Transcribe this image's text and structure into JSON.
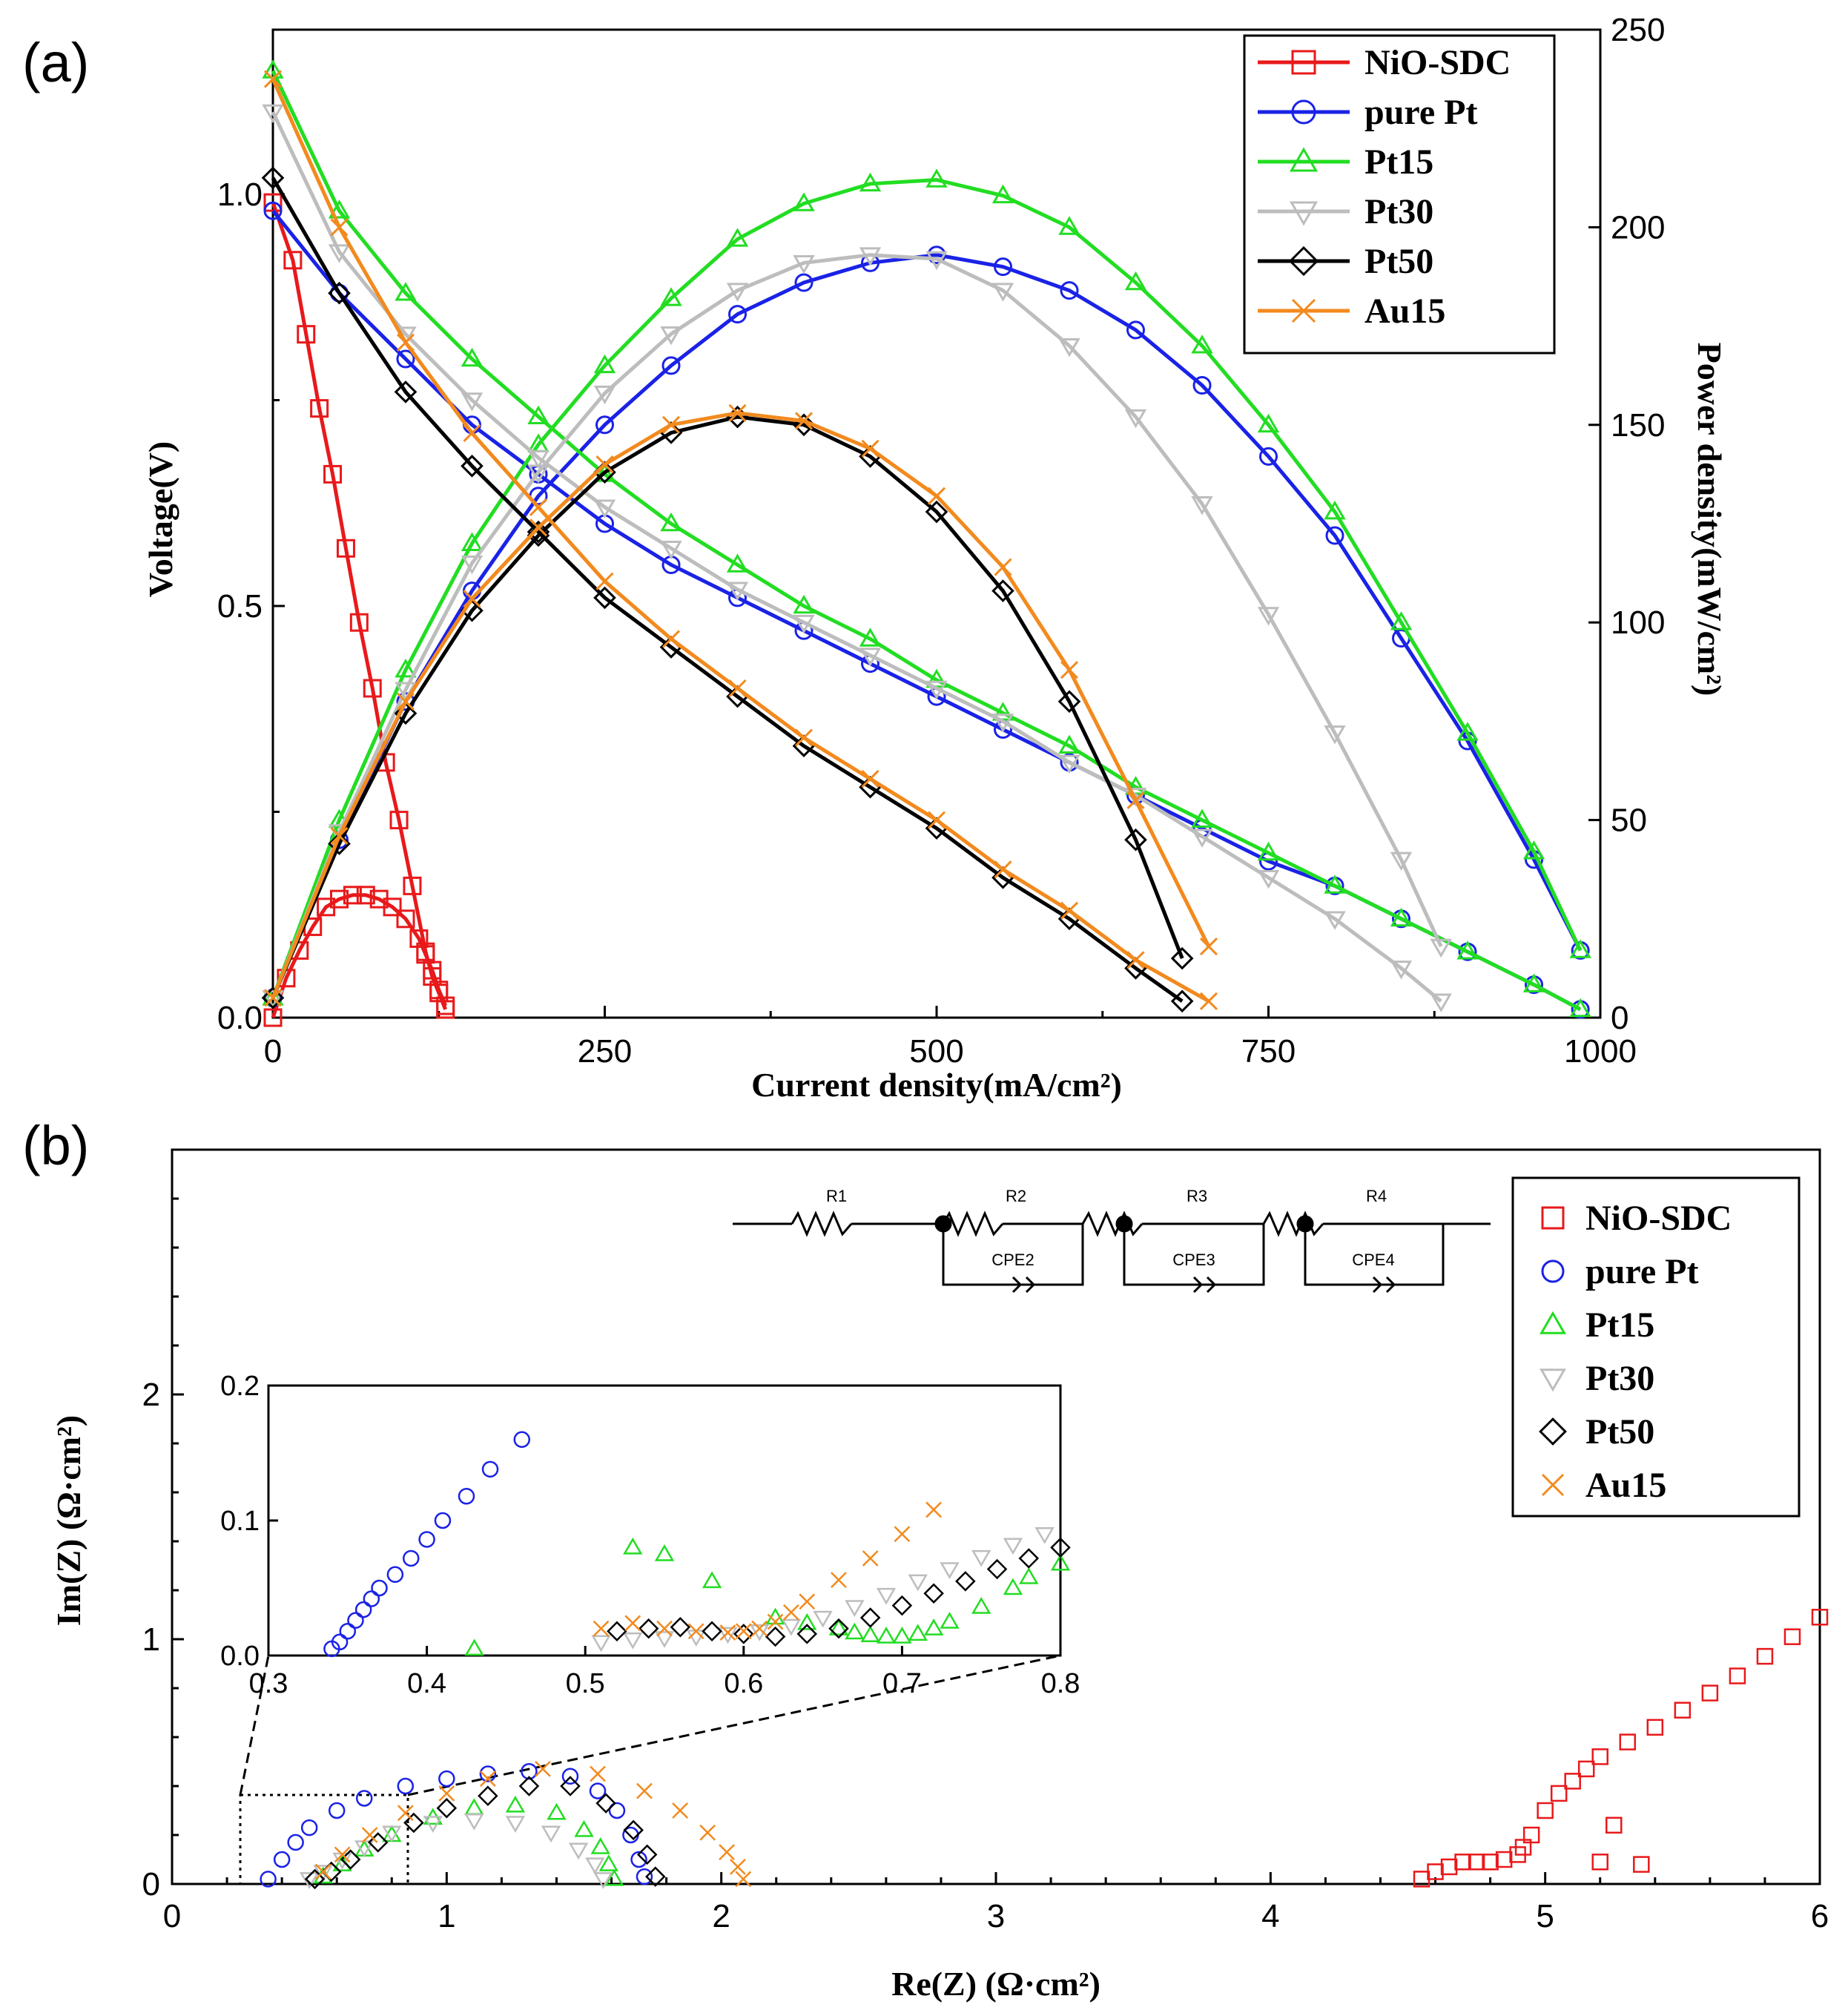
{
  "panel_a_label": "(a)",
  "panel_b_label": "(b)",
  "colors": {
    "NiO-SDC": "#e8191b",
    "pure Pt": "#1a22e6",
    "Pt15": "#22dd22",
    "Pt30": "#bdbdbd",
    "Pt50": "#000000",
    "Au15": "#f28a1e"
  },
  "chart_data": [
    {
      "id": "a",
      "type": "line",
      "title": "",
      "xlabel": "Current density(mA/cm²)",
      "ylabel": "Voltage(V)",
      "y2label": "Power density(mW/cm²)",
      "xlim": [
        0,
        1000
      ],
      "ylim": [
        0,
        1.2
      ],
      "y2lim": [
        0,
        250
      ],
      "xticks": [
        0,
        250,
        500,
        750,
        1000
      ],
      "yticks": [
        0.0,
        0.5,
        1.0
      ],
      "y2ticks": [
        0,
        50,
        100,
        150,
        200,
        250
      ],
      "legend": [
        "NiO-SDC",
        "pure Pt",
        "Pt15",
        "Pt30",
        "Pt50",
        "Au15"
      ],
      "series": [
        {
          "name": "NiO-SDC",
          "marker": "square",
          "voltage": {
            "x": [
              0,
              15,
              25,
              35,
              45,
              55,
              65,
              75,
              85,
              95,
              105,
              115,
              120,
              125,
              130
            ],
            "y": [
              0.99,
              0.92,
              0.83,
              0.74,
              0.66,
              0.57,
              0.48,
              0.4,
              0.31,
              0.24,
              0.16,
              0.08,
              0.05,
              0.03,
              0.01
            ]
          },
          "power": {
            "x": [
              0,
              10,
              20,
              30,
              40,
              50,
              60,
              70,
              80,
              90,
              100,
              110,
              115,
              120,
              125,
              130
            ],
            "y": [
              0,
              10,
              17,
              23,
              28,
              30,
              31,
              31,
              30,
              28,
              25,
              20,
              16,
              12,
              7,
              3
            ]
          }
        },
        {
          "name": "pure Pt",
          "marker": "circle",
          "voltage": {
            "x": [
              0,
              50,
              100,
              150,
              200,
              250,
              300,
              350,
              400,
              450,
              500,
              550,
              600,
              650,
              700,
              750,
              800,
              850,
              900,
              950,
              985
            ],
            "y": [
              0.98,
              0.88,
              0.8,
              0.72,
              0.66,
              0.6,
              0.55,
              0.51,
              0.47,
              0.43,
              0.39,
              0.35,
              0.31,
              0.27,
              0.23,
              0.19,
              0.16,
              0.12,
              0.08,
              0.04,
              0.01
            ]
          },
          "power": {
            "x": [
              0,
              50,
              100,
              150,
              200,
              250,
              300,
              350,
              400,
              450,
              500,
              550,
              600,
              650,
              700,
              750,
              800,
              850,
              900,
              950,
              985
            ],
            "y": [
              5,
              45,
              80,
              108,
              132,
              150,
              165,
              178,
              186,
              191,
              193,
              190,
              184,
              174,
              160,
              142,
              122,
              96,
              70,
              40,
              17
            ]
          }
        },
        {
          "name": "Pt15",
          "marker": "triangle-up",
          "voltage": {
            "x": [
              0,
              50,
              100,
              150,
              200,
              250,
              300,
              350,
              400,
              450,
              500,
              550,
              600,
              650,
              700,
              750,
              800,
              850,
              900,
              950,
              985
            ],
            "y": [
              1.15,
              0.98,
              0.88,
              0.8,
              0.73,
              0.66,
              0.6,
              0.55,
              0.5,
              0.46,
              0.41,
              0.37,
              0.33,
              0.28,
              0.24,
              0.2,
              0.16,
              0.12,
              0.08,
              0.04,
              0.01
            ]
          },
          "power": {
            "x": [
              0,
              50,
              100,
              150,
              200,
              250,
              300,
              350,
              400,
              450,
              500,
              550,
              600,
              650,
              700,
              750,
              800,
              850,
              900,
              950,
              985
            ],
            "y": [
              5,
              50,
              88,
              120,
              145,
              165,
              182,
              197,
              206,
              211,
              212,
              208,
              200,
              186,
              170,
              150,
              128,
              100,
              72,
              42,
              17
            ]
          }
        },
        {
          "name": "Pt30",
          "marker": "triangle-down",
          "voltage": {
            "x": [
              0,
              50,
              100,
              150,
              200,
              250,
              300,
              350,
              400,
              450,
              500,
              550,
              600,
              650,
              700,
              750,
              800,
              850,
              880
            ],
            "y": [
              1.1,
              0.93,
              0.83,
              0.75,
              0.68,
              0.62,
              0.57,
              0.52,
              0.48,
              0.44,
              0.4,
              0.36,
              0.31,
              0.27,
              0.22,
              0.17,
              0.12,
              0.06,
              0.02
            ]
          },
          "power": {
            "x": [
              0,
              50,
              100,
              150,
              200,
              250,
              300,
              350,
              400,
              450,
              500,
              550,
              600,
              650,
              700,
              750,
              800,
              850,
              880
            ],
            "y": [
              5,
              47,
              83,
              115,
              138,
              158,
              173,
              184,
              191,
              193,
              192,
              184,
              170,
              152,
              130,
              102,
              72,
              40,
              18
            ]
          }
        },
        {
          "name": "Pt50",
          "marker": "diamond",
          "voltage": {
            "x": [
              0,
              50,
              100,
              150,
              200,
              250,
              300,
              350,
              400,
              450,
              500,
              550,
              600,
              650,
              685
            ],
            "y": [
              1.02,
              0.88,
              0.76,
              0.67,
              0.59,
              0.51,
              0.45,
              0.39,
              0.33,
              0.28,
              0.23,
              0.17,
              0.12,
              0.06,
              0.02
            ]
          },
          "power": {
            "x": [
              0,
              50,
              100,
              150,
              200,
              250,
              300,
              350,
              400,
              450,
              500,
              550,
              600,
              650,
              685
            ],
            "y": [
              5,
              44,
              77,
              103,
              122,
              138,
              148,
              152,
              150,
              142,
              128,
              108,
              80,
              45,
              15
            ]
          }
        },
        {
          "name": "Au15",
          "marker": "x",
          "voltage": {
            "x": [
              0,
              50,
              100,
              150,
              200,
              250,
              300,
              350,
              400,
              450,
              500,
              550,
              600,
              650,
              705
            ],
            "y": [
              1.14,
              0.96,
              0.82,
              0.71,
              0.62,
              0.53,
              0.46,
              0.4,
              0.34,
              0.29,
              0.24,
              0.18,
              0.13,
              0.07,
              0.02
            ]
          },
          "power": {
            "x": [
              0,
              50,
              100,
              150,
              200,
              250,
              300,
              350,
              400,
              450,
              500,
              550,
              600,
              650,
              705
            ],
            "y": [
              5,
              46,
              80,
              106,
              124,
              140,
              150,
              153,
              151,
              144,
              132,
              114,
              88,
              55,
              18
            ]
          }
        }
      ]
    },
    {
      "id": "b",
      "type": "scatter",
      "title": "",
      "xlabel": "Re(Z) (Ω·cm²)",
      "ylabel": "Im(Z) (Ω·cm²)",
      "xlim": [
        0,
        6
      ],
      "ylim": [
        0,
        3.0
      ],
      "xticks": [
        0,
        1,
        2,
        3,
        4,
        5,
        6
      ],
      "yticks": [
        0,
        1,
        2
      ],
      "legend": [
        "NiO-SDC",
        "pure Pt",
        "Pt15",
        "Pt30",
        "Pt50",
        "Au15"
      ],
      "circuit_labels": [
        "R1",
        "R2",
        "R3",
        "R4",
        "CPE2",
        "CPE3",
        "CPE4"
      ],
      "series": [
        {
          "name": "NiO-SDC",
          "marker": "square",
          "x": [
            4.55,
            4.6,
            4.65,
            4.7,
            4.75,
            4.8,
            4.85,
            4.9,
            4.92,
            4.95,
            5.0,
            5.05,
            5.1,
            5.15,
            5.2,
            5.3,
            5.4,
            5.5,
            5.6,
            5.7,
            5.8,
            5.9,
            6.0,
            5.2,
            5.35,
            5.25
          ],
          "y": [
            0.02,
            0.05,
            0.07,
            0.09,
            0.09,
            0.09,
            0.1,
            0.12,
            0.15,
            0.2,
            0.3,
            0.37,
            0.42,
            0.47,
            0.52,
            0.58,
            0.64,
            0.71,
            0.78,
            0.85,
            0.93,
            1.01,
            1.09,
            0.09,
            0.08,
            0.24
          ]
        },
        {
          "name": "pure Pt",
          "marker": "circle",
          "x": [
            0.35,
            0.4,
            0.45,
            0.5,
            0.6,
            0.7,
            0.85,
            1.0,
            1.15,
            1.3,
            1.45,
            1.55,
            1.62,
            1.67,
            1.7,
            1.72
          ],
          "y": [
            0.02,
            0.1,
            0.17,
            0.23,
            0.3,
            0.35,
            0.4,
            0.43,
            0.45,
            0.46,
            0.44,
            0.38,
            0.3,
            0.2,
            0.1,
            0.03
          ]
        },
        {
          "name": "Pt15",
          "marker": "triangle-up",
          "x": [
            0.55,
            0.62,
            0.7,
            0.8,
            0.95,
            1.1,
            1.25,
            1.4,
            1.5,
            1.56,
            1.59,
            1.61
          ],
          "y": [
            0.03,
            0.08,
            0.14,
            0.2,
            0.27,
            0.31,
            0.32,
            0.29,
            0.22,
            0.15,
            0.08,
            0.02
          ]
        },
        {
          "name": "Pt30",
          "marker": "triangle-down",
          "x": [
            0.5,
            0.55,
            0.62,
            0.7,
            0.8,
            0.95,
            1.1,
            1.25,
            1.38,
            1.48,
            1.54,
            1.57
          ],
          "y": [
            0.02,
            0.05,
            0.1,
            0.15,
            0.21,
            0.25,
            0.26,
            0.25,
            0.21,
            0.14,
            0.08,
            0.02
          ]
        },
        {
          "name": "Pt50",
          "marker": "diamond",
          "x": [
            0.52,
            0.58,
            0.65,
            0.75,
            0.88,
            1.0,
            1.15,
            1.3,
            1.45,
            1.58,
            1.68,
            1.73,
            1.76
          ],
          "y": [
            0.02,
            0.05,
            0.1,
            0.17,
            0.25,
            0.31,
            0.36,
            0.4,
            0.4,
            0.33,
            0.22,
            0.12,
            0.03
          ]
        },
        {
          "name": "Au15",
          "marker": "x",
          "x": [
            0.55,
            0.62,
            0.72,
            0.85,
            1.0,
            1.15,
            1.35,
            1.55,
            1.72,
            1.85,
            1.95,
            2.02,
            2.06,
            2.08
          ],
          "y": [
            0.05,
            0.12,
            0.2,
            0.29,
            0.37,
            0.43,
            0.47,
            0.45,
            0.38,
            0.3,
            0.21,
            0.13,
            0.07,
            0.02
          ]
        }
      ],
      "inset": {
        "xlim": [
          0.3,
          0.8
        ],
        "ylim": [
          0,
          0.2
        ],
        "xticks": [
          0.3,
          0.4,
          0.5,
          0.6,
          0.7,
          0.8
        ],
        "yticks": [
          0.0,
          0.1,
          0.2
        ],
        "series": [
          {
            "name": "pure Pt",
            "marker": "circle",
            "x": [
              0.34,
              0.345,
              0.35,
              0.355,
              0.36,
              0.365,
              0.37,
              0.38,
              0.39,
              0.4,
              0.41,
              0.425,
              0.44,
              0.46
            ],
            "y": [
              0.005,
              0.01,
              0.018,
              0.026,
              0.034,
              0.042,
              0.05,
              0.06,
              0.072,
              0.086,
              0.1,
              0.118,
              0.138,
              0.16
            ]
          },
          {
            "name": "Pt15",
            "marker": "triangle-up",
            "x": [
              0.43,
              0.53,
              0.55,
              0.58,
              0.62,
              0.64,
              0.66,
              0.67,
              0.68,
              0.69,
              0.7,
              0.71,
              0.72,
              0.73,
              0.75,
              0.77,
              0.78,
              0.8
            ],
            "y": [
              0.005,
              0.08,
              0.075,
              0.055,
              0.028,
              0.024,
              0.02,
              0.017,
              0.015,
              0.014,
              0.014,
              0.016,
              0.02,
              0.025,
              0.036,
              0.05,
              0.058,
              0.068
            ]
          },
          {
            "name": "Pt30",
            "marker": "triangle-down",
            "x": [
              0.51,
              0.53,
              0.55,
              0.57,
              0.59,
              0.61,
              0.63,
              0.65,
              0.67,
              0.69,
              0.71,
              0.73,
              0.75,
              0.77,
              0.79
            ],
            "y": [
              0.01,
              0.012,
              0.013,
              0.014,
              0.016,
              0.018,
              0.022,
              0.028,
              0.036,
              0.045,
              0.055,
              0.064,
              0.073,
              0.082,
              0.09
            ]
          },
          {
            "name": "Pt50",
            "marker": "diamond",
            "x": [
              0.52,
              0.54,
              0.56,
              0.58,
              0.6,
              0.62,
              0.64,
              0.66,
              0.68,
              0.7,
              0.72,
              0.74,
              0.76,
              0.78,
              0.8
            ],
            "y": [
              0.018,
              0.02,
              0.021,
              0.018,
              0.016,
              0.014,
              0.016,
              0.02,
              0.028,
              0.037,
              0.046,
              0.055,
              0.064,
              0.072,
              0.08
            ]
          },
          {
            "name": "Au15",
            "marker": "x",
            "x": [
              0.51,
              0.53,
              0.55,
              0.57,
              0.59,
              0.6,
              0.61,
              0.62,
              0.63,
              0.64,
              0.66,
              0.68,
              0.7,
              0.72
            ],
            "y": [
              0.02,
              0.024,
              0.02,
              0.018,
              0.017,
              0.018,
              0.02,
              0.025,
              0.032,
              0.04,
              0.056,
              0.072,
              0.09,
              0.108
            ]
          }
        ]
      }
    }
  ]
}
